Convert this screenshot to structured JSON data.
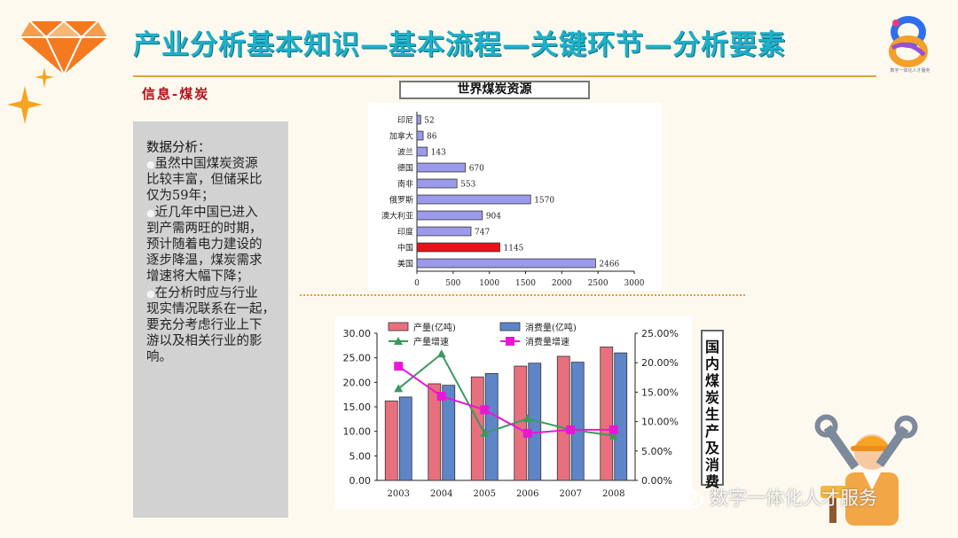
{
  "header": {
    "title": "产业分析基本知识—基本流程—关键环节—分析要素",
    "logo_caption": "数字一体化人才服务"
  },
  "section": {
    "subtitle": "信息-煤炭"
  },
  "analysis": {
    "title": "数据分析：",
    "bullet_symbol": "●",
    "lines": [
      {
        "bullet": true,
        "text": "虽然中国煤炭资源"
      },
      {
        "bullet": false,
        "text": "比较丰富，但储采比"
      },
      {
        "bullet": false,
        "text": "仅为59年；"
      },
      {
        "bullet": true,
        "text": "近几年中国已进入"
      },
      {
        "bullet": false,
        "text": "到产需两旺的时期，"
      },
      {
        "bullet": false,
        "text": "预计随着电力建设的"
      },
      {
        "bullet": false,
        "text": "逐步降温，煤炭需求"
      },
      {
        "bullet": false,
        "text": "增速将大幅下降；"
      },
      {
        "bullet": true,
        "text": "在分析时应与行业"
      },
      {
        "bullet": false,
        "text": "现实情况联系在一起，"
      },
      {
        "bullet": false,
        "text": "要充分考虑行业上下"
      },
      {
        "bullet": false,
        "text": "游以及相关行业的影"
      },
      {
        "bullet": false,
        "text": "响。"
      }
    ]
  },
  "side_label": {
    "chars": [
      "国",
      "内",
      "煤",
      "炭",
      "生",
      "产",
      "及",
      "消",
      "费"
    ]
  },
  "watermark": {
    "text": "数字一体化人才服务"
  },
  "colors": {
    "title": "#1fb0c9",
    "subtitle": "#b0121b",
    "bar_default": "#9b9bea",
    "bar_highlight": "#e3141b",
    "production_bar": "#e8707e",
    "consumption_bar": "#5f85c9",
    "production_growth": "#3a9a5e",
    "consumption_growth": "#e817d6",
    "accent_rule": "#e0a63a"
  },
  "chart_data": [
    {
      "type": "bar",
      "orientation": "horizontal",
      "title": "世界煤炭资源",
      "categories": [
        "印尼",
        "加拿大",
        "波兰",
        "德国",
        "南非",
        "俄罗斯",
        "澳大利亚",
        "印度",
        "中国",
        "美国"
      ],
      "values": [
        52,
        86,
        143,
        670,
        553,
        1570,
        904,
        747,
        1145,
        2466
      ],
      "highlight": "中国",
      "xlim": [
        0,
        3000
      ],
      "xticks": [
        0,
        500,
        1000,
        1500,
        2000,
        2500,
        3000
      ],
      "grid": false
    },
    {
      "type": "bar",
      "combo": "bar+line",
      "categories": [
        "2003",
        "2004",
        "2005",
        "2006",
        "2007",
        "2008"
      ],
      "bar_series": [
        {
          "name": "产量(亿吨)",
          "values": [
            16.2,
            19.7,
            21.1,
            23.3,
            25.3,
            27.2
          ]
        },
        {
          "name": "消费量(亿吨)",
          "values": [
            17.0,
            19.4,
            21.8,
            23.9,
            24.1,
            26.0
          ]
        }
      ],
      "line_series": [
        {
          "name": "产量增速",
          "values": [
            15.6,
            21.5,
            8.0,
            10.5,
            8.6,
            7.6
          ]
        },
        {
          "name": "消费量增速",
          "values": [
            19.4,
            14.3,
            12.0,
            8.0,
            8.6,
            8.6
          ]
        }
      ],
      "ylim_left": [
        0,
        30
      ],
      "yticks_left": [
        "0.00",
        "5.00",
        "10.00",
        "15.00",
        "20.00",
        "25.00",
        "30.00"
      ],
      "ylim_right": [
        0,
        25
      ],
      "yticks_right": [
        "0.00%",
        "5.00%",
        "10.00%",
        "15.00%",
        "20.00%",
        "25.00%"
      ],
      "legend": "top"
    }
  ]
}
